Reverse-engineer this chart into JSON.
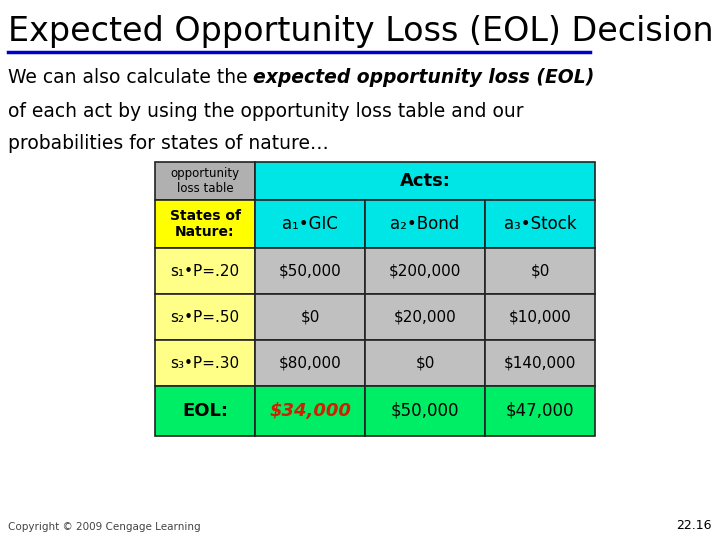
{
  "title": "Expected Opportunity Loss (EOL) Decision",
  "copyright": "Copyright © 2009 Cengage Learning",
  "page_number": "22.16",
  "slide_background": "#ffffff",
  "underline_color": "#0000cc",
  "table": {
    "col_colors": {
      "header_top_left": "#b0b0b0",
      "header_top_acts": "#00e5e5",
      "header_states": "#ffff00",
      "header_acts_cells": "#00e5e5",
      "data_row_left": "#ffff88",
      "data_row_cells": "#c0c0c0",
      "eol_row_left": "#00ee66",
      "eol_row_cells": "#00ee66",
      "eol_value_color": "#cc2200"
    },
    "acts_labels": [
      "a₁•GIC",
      "a₂•Bond",
      "a₃•Stock"
    ],
    "rows": [
      [
        "s₁•P=.20",
        "$50,000",
        "$200,000",
        "$0"
      ],
      [
        "s₂•P=.50",
        "$0",
        "$20,000",
        "$10,000"
      ],
      [
        "s₃•P=.30",
        "$80,000",
        "$0",
        "$140,000"
      ],
      [
        "EOL:",
        "$34,000",
        "$50,000",
        "$47,000"
      ]
    ]
  }
}
